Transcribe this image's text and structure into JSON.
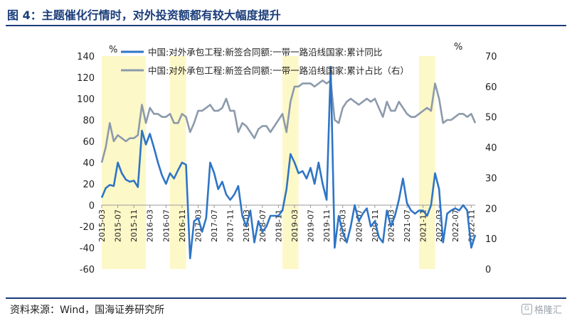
{
  "figure": {
    "title": "图 4：主题催化行情时，对外投资额都有较大幅度提升",
    "source": "资料来源：Wind，国海证券研究所",
    "watermark": "格隆汇"
  },
  "chart_data": {
    "type": "line",
    "title": "",
    "left_axis": {
      "unit": "%",
      "ylim": [
        -60,
        140
      ],
      "ticks": [
        -60,
        -40,
        -20,
        0,
        20,
        40,
        60,
        80,
        100,
        120,
        140
      ]
    },
    "right_axis": {
      "unit": "%",
      "ylim": [
        0,
        70
      ],
      "ticks": [
        0,
        10,
        20,
        30,
        40,
        50,
        60,
        70
      ]
    },
    "x_ticks": [
      "2015-03",
      "2015-07",
      "2015-11",
      "2016-03",
      "2016-07",
      "2016-11",
      "2017-03",
      "2017-07",
      "2017-11",
      "2018-03",
      "2018-07",
      "2018-11",
      "2019-03",
      "2019-07",
      "2019-11",
      "2020-03",
      "2020-07",
      "2020-11",
      "2021-03",
      "2021-07",
      "2021-11",
      "2022-03",
      "2022-07",
      "2022-11"
    ],
    "highlight_periods": [
      [
        "2015-03",
        "2016-02"
      ],
      [
        "2016-08",
        "2016-12"
      ],
      [
        "2018-12",
        "2019-04"
      ],
      [
        "2021-10",
        "2022-02"
      ]
    ],
    "highlight_color": "#fdf8c8",
    "grid": false,
    "legend_position": "top",
    "series": [
      {
        "name": "中国:对外承包工程:新签合同额:一带一路沿线国家:累计同比",
        "axis": "left",
        "color": "#2e75c6",
        "points": [
          [
            "2015-03",
            7
          ],
          [
            "2015-04",
            16
          ],
          [
            "2015-05",
            19
          ],
          [
            "2015-06",
            18
          ],
          [
            "2015-07",
            40
          ],
          [
            "2015-08",
            30
          ],
          [
            "2015-09",
            24
          ],
          [
            "2015-10",
            22
          ],
          [
            "2015-11",
            23
          ],
          [
            "2015-12",
            17
          ],
          [
            "2016-01",
            70
          ],
          [
            "2016-02",
            57
          ],
          [
            "2016-03",
            67
          ],
          [
            "2016-04",
            54
          ],
          [
            "2016-05",
            40
          ],
          [
            "2016-06",
            28
          ],
          [
            "2016-07",
            20
          ],
          [
            "2016-08",
            30
          ],
          [
            "2016-09",
            25
          ],
          [
            "2016-10",
            33
          ],
          [
            "2016-11",
            40
          ],
          [
            "2016-12",
            38
          ],
          [
            "2017-01",
            -50
          ],
          [
            "2017-02",
            -15
          ],
          [
            "2017-03",
            -12
          ],
          [
            "2017-04",
            -25
          ],
          [
            "2017-05",
            -12
          ],
          [
            "2017-06",
            40
          ],
          [
            "2017-07",
            30
          ],
          [
            "2017-08",
            15
          ],
          [
            "2017-09",
            22
          ],
          [
            "2017-10",
            10
          ],
          [
            "2017-11",
            5
          ],
          [
            "2017-12",
            10
          ],
          [
            "2018-01",
            18
          ],
          [
            "2018-02",
            -10
          ],
          [
            "2018-03",
            -20
          ],
          [
            "2018-04",
            -5
          ],
          [
            "2018-05",
            -35
          ],
          [
            "2018-06",
            -15
          ],
          [
            "2018-07",
            -25
          ],
          [
            "2018-08",
            -20
          ],
          [
            "2018-09",
            -10
          ],
          [
            "2018-10",
            -10
          ],
          [
            "2018-11",
            -10
          ],
          [
            "2018-12",
            -5
          ],
          [
            "2019-01",
            15
          ],
          [
            "2019-02",
            48
          ],
          [
            "2019-03",
            40
          ],
          [
            "2019-04",
            30
          ],
          [
            "2019-05",
            32
          ],
          [
            "2019-06",
            25
          ],
          [
            "2019-07",
            35
          ],
          [
            "2019-08",
            20
          ],
          [
            "2019-09",
            40
          ],
          [
            "2019-10",
            20
          ],
          [
            "2019-11",
            5
          ],
          [
            "2019-12",
            130
          ],
          [
            "2020-01",
            -40
          ],
          [
            "2020-02",
            -10
          ],
          [
            "2020-03",
            -25
          ],
          [
            "2020-04",
            -35
          ],
          [
            "2020-05",
            -20
          ],
          [
            "2020-06",
            0
          ],
          [
            "2020-07",
            -15
          ],
          [
            "2020-08",
            -8
          ],
          [
            "2020-09",
            -3
          ],
          [
            "2020-10",
            -20
          ],
          [
            "2020-11",
            -15
          ],
          [
            "2020-12",
            -30
          ],
          [
            "2021-01",
            -35
          ],
          [
            "2021-02",
            -5
          ],
          [
            "2021-03",
            -20
          ],
          [
            "2021-04",
            -10
          ],
          [
            "2021-05",
            5
          ],
          [
            "2021-06",
            25
          ],
          [
            "2021-07",
            2
          ],
          [
            "2021-08",
            -5
          ],
          [
            "2021-09",
            -8
          ],
          [
            "2021-10",
            -5
          ],
          [
            "2021-11",
            -5
          ],
          [
            "2021-12",
            -10
          ],
          [
            "2022-01",
            0
          ],
          [
            "2022-02",
            30
          ],
          [
            "2022-03",
            15
          ],
          [
            "2022-04",
            -35
          ],
          [
            "2022-05",
            -8
          ],
          [
            "2022-06",
            -5
          ],
          [
            "2022-07",
            -3
          ],
          [
            "2022-08",
            -5
          ],
          [
            "2022-09",
            0
          ],
          [
            "2022-10",
            -5
          ],
          [
            "2022-11",
            -40
          ],
          [
            "2022-12",
            -28
          ]
        ]
      },
      {
        "name": "中国:对外承包工程:新签合同额:一带一路沿线国家:累计占比（右）",
        "axis": "right",
        "color": "#8c9aab",
        "points": [
          [
            "2015-03",
            35
          ],
          [
            "2015-04",
            40
          ],
          [
            "2015-05",
            48
          ],
          [
            "2015-06",
            42
          ],
          [
            "2015-07",
            44
          ],
          [
            "2015-08",
            43
          ],
          [
            "2015-09",
            42
          ],
          [
            "2015-10",
            43
          ],
          [
            "2015-11",
            43
          ],
          [
            "2015-12",
            44
          ],
          [
            "2016-01",
            54
          ],
          [
            "2016-02",
            48
          ],
          [
            "2016-03",
            53
          ],
          [
            "2016-04",
            51
          ],
          [
            "2016-05",
            51
          ],
          [
            "2016-06",
            50
          ],
          [
            "2016-07",
            50
          ],
          [
            "2016-08",
            51
          ],
          [
            "2016-09",
            48
          ],
          [
            "2016-10",
            48
          ],
          [
            "2016-11",
            51
          ],
          [
            "2016-12",
            50
          ],
          [
            "2017-01",
            45
          ],
          [
            "2017-02",
            48
          ],
          [
            "2017-03",
            52
          ],
          [
            "2017-04",
            52
          ],
          [
            "2017-05",
            53
          ],
          [
            "2017-06",
            54
          ],
          [
            "2017-07",
            52
          ],
          [
            "2017-08",
            52
          ],
          [
            "2017-09",
            53
          ],
          [
            "2017-10",
            56
          ],
          [
            "2017-11",
            52
          ],
          [
            "2017-12",
            52
          ],
          [
            "2018-01",
            45
          ],
          [
            "2018-02",
            48
          ],
          [
            "2018-03",
            47
          ],
          [
            "2018-04",
            45
          ],
          [
            "2018-05",
            43
          ],
          [
            "2018-06",
            46
          ],
          [
            "2018-07",
            47
          ],
          [
            "2018-08",
            47
          ],
          [
            "2018-09",
            45
          ],
          [
            "2018-10",
            47
          ],
          [
            "2018-11",
            49
          ],
          [
            "2018-12",
            51
          ],
          [
            "2019-01",
            45
          ],
          [
            "2019-02",
            55
          ],
          [
            "2019-03",
            60
          ],
          [
            "2019-04",
            60
          ],
          [
            "2019-05",
            61
          ],
          [
            "2019-06",
            61
          ],
          [
            "2019-07",
            61
          ],
          [
            "2019-08",
            60
          ],
          [
            "2019-09",
            61
          ],
          [
            "2019-10",
            62
          ],
          [
            "2019-11",
            61
          ],
          [
            "2019-12",
            62
          ],
          [
            "2020-01",
            49
          ],
          [
            "2020-02",
            48
          ],
          [
            "2020-03",
            53
          ],
          [
            "2020-04",
            55
          ],
          [
            "2020-05",
            56
          ],
          [
            "2020-06",
            55
          ],
          [
            "2020-07",
            54
          ],
          [
            "2020-08",
            55
          ],
          [
            "2020-09",
            56
          ],
          [
            "2020-10",
            55
          ],
          [
            "2020-11",
            56
          ],
          [
            "2020-12",
            53
          ],
          [
            "2021-01",
            50
          ],
          [
            "2021-02",
            55
          ],
          [
            "2021-03",
            52
          ],
          [
            "2021-04",
            52
          ],
          [
            "2021-05",
            55
          ],
          [
            "2021-06",
            53
          ],
          [
            "2021-07",
            51
          ],
          [
            "2021-08",
            50
          ],
          [
            "2021-09",
            50
          ],
          [
            "2021-10",
            51
          ],
          [
            "2021-11",
            52
          ],
          [
            "2021-12",
            53
          ],
          [
            "2022-01",
            52
          ],
          [
            "2022-02",
            61
          ],
          [
            "2022-03",
            56
          ],
          [
            "2022-04",
            48
          ],
          [
            "2022-05",
            49
          ],
          [
            "2022-06",
            49
          ],
          [
            "2022-07",
            50
          ],
          [
            "2022-08",
            51
          ],
          [
            "2022-09",
            51
          ],
          [
            "2022-10",
            50
          ],
          [
            "2022-11",
            51
          ],
          [
            "2022-12",
            48
          ]
        ]
      }
    ]
  }
}
